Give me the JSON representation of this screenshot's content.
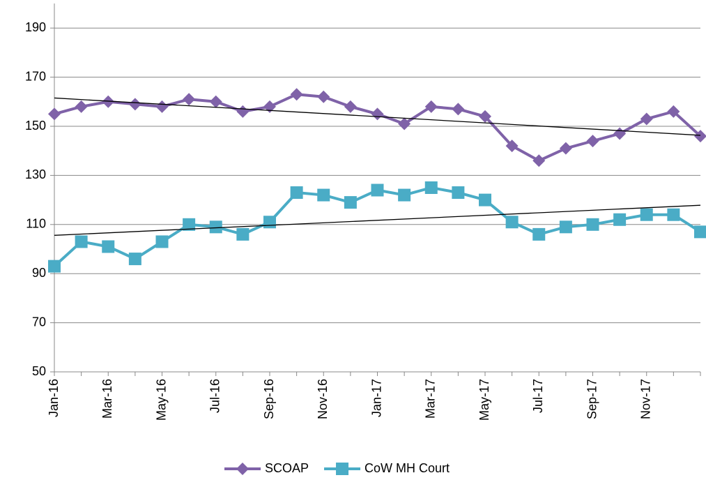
{
  "chart_data": {
    "type": "line",
    "categories": [
      "Jan-16",
      null,
      "Mar-16",
      null,
      "May-16",
      null,
      "Jul-16",
      null,
      "Sep-16",
      null,
      "Nov-16",
      null,
      "Jan-17",
      null,
      "Mar-17",
      null,
      "May-17",
      null,
      "Jul-17",
      null,
      "Sep-17",
      null,
      "Nov-17",
      null,
      null
    ],
    "series": [
      {
        "name": "SCOAP",
        "color": "#7f62a8",
        "marker": "diamond",
        "values": [
          155,
          158,
          160,
          159,
          158,
          161,
          160,
          156,
          158,
          163,
          162,
          158,
          155,
          151,
          158,
          157,
          154,
          142,
          136,
          141,
          144,
          147,
          153,
          156,
          146
        ]
      },
      {
        "name": "CoW MH Court",
        "color": "#4aacc6",
        "marker": "square",
        "values": [
          93,
          103,
          101,
          96,
          103,
          110,
          109,
          106,
          111,
          123,
          122,
          119,
          124,
          122,
          125,
          123,
          120,
          111,
          106,
          109,
          110,
          112,
          114,
          114,
          107
        ]
      }
    ],
    "ylim": [
      50,
      200
    ],
    "yticks": [
      50,
      70,
      90,
      110,
      130,
      150,
      170,
      190
    ],
    "grid": true,
    "trendline": true,
    "legend": "bottom"
  }
}
